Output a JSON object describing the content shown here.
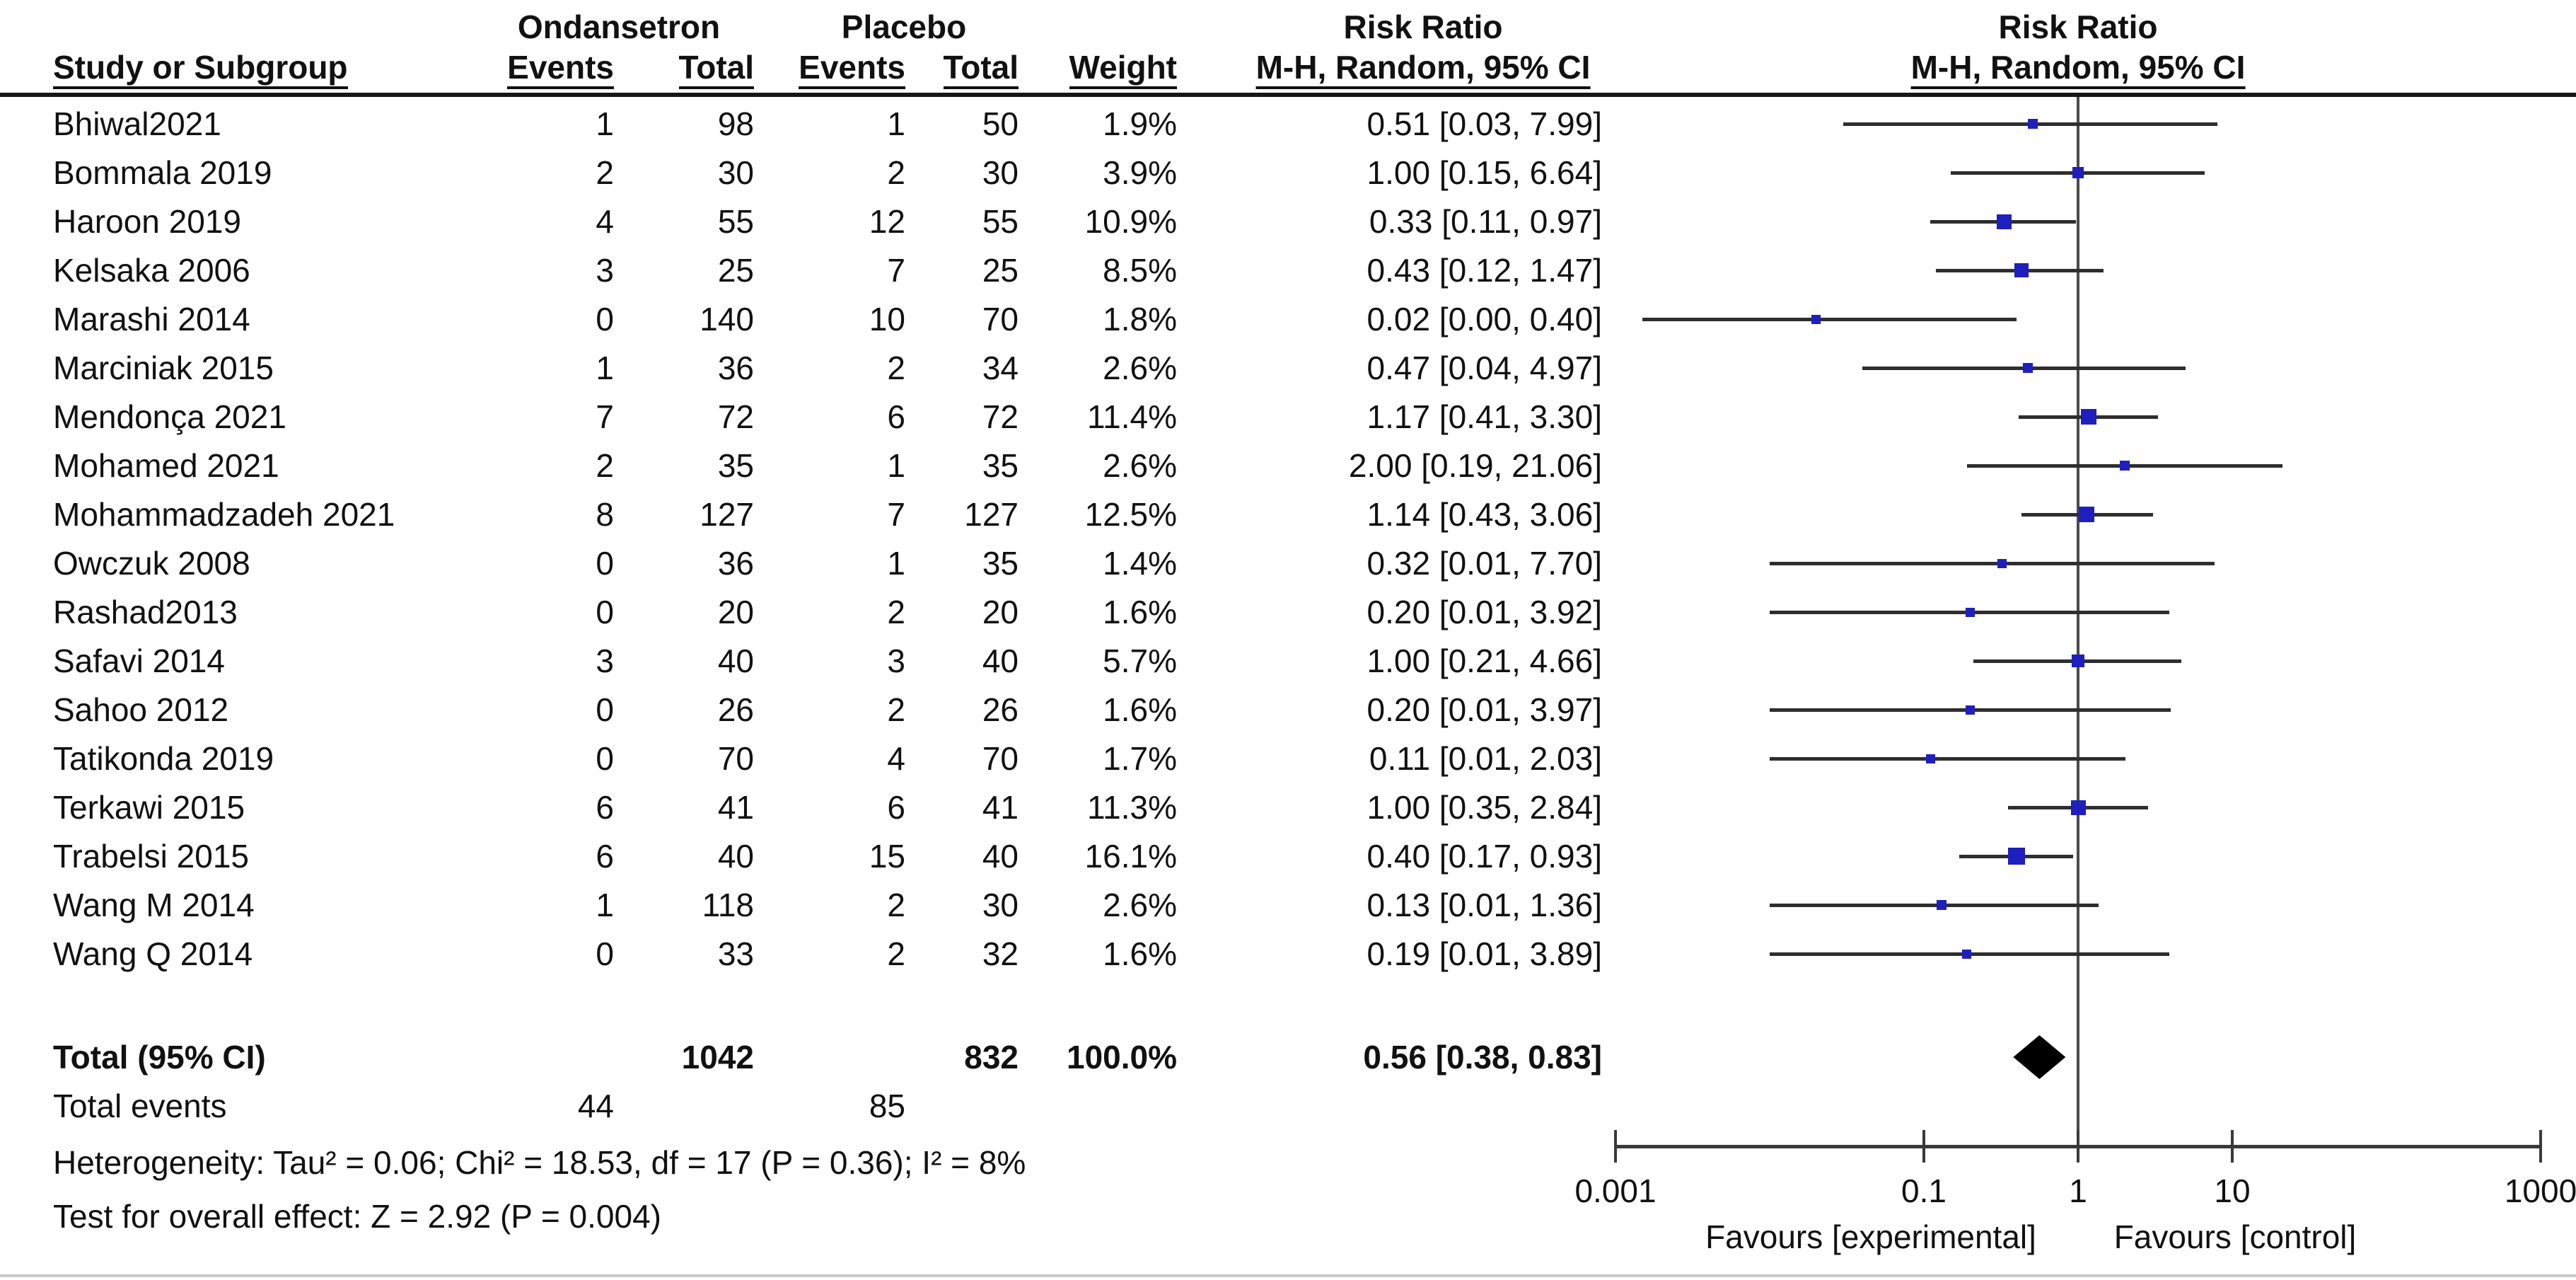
{
  "header": {
    "group_experimental": "Ondansetron",
    "group_control": "Placebo",
    "col_study": "Study or Subgroup",
    "col_events": "Events",
    "col_total": "Total",
    "col_events2": "Events",
    "col_total2": "Total",
    "col_weight": "Weight",
    "risk_ratio_title_text": "Risk Ratio",
    "risk_ratio_title_plot": "Risk Ratio",
    "method_text": "M-H, Random, 95% CI",
    "method_plot": "M-H, Random, 95% CI"
  },
  "footer": {
    "total_label": "Total (95% CI)",
    "total_events_label": "Total events",
    "heterogeneity": "Heterogeneity: Tau² = 0.06; Chi² = 18.53, df = 17 (P = 0.36); I² = 8%",
    "overall_effect": "Test for overall effect: Z = 2.92 (P = 0.004)"
  },
  "colors": {
    "marker_blue": "#1f1fbe",
    "ci_line": "#2e2e2e",
    "diamond": "#000000"
  },
  "chart_data": {
    "type": "scatter",
    "subtype": "forest-plot",
    "x_scale": "log",
    "x_ticks_labels": [
      "0.001",
      "0.1",
      "1",
      "10",
      "1000"
    ],
    "x_ticks_values": [
      0.001,
      0.1,
      1,
      10,
      1000
    ],
    "xlim": [
      0.001,
      1000
    ],
    "favours_left": "Favours [experimental]",
    "favours_right": "Favours [control]",
    "studies": [
      {
        "name": "Bhiwal2021",
        "ev1": "1",
        "tot1": "98",
        "ev2": "1",
        "tot2": "50",
        "weight": "1.9%",
        "w": 1.9,
        "rr_text": "0.51 [0.03, 7.99]",
        "rr": 0.51,
        "lo": 0.03,
        "hi": 7.99
      },
      {
        "name": "Bommala 2019",
        "ev1": "2",
        "tot1": "30",
        "ev2": "2",
        "tot2": "30",
        "weight": "3.9%",
        "w": 3.9,
        "rr_text": "1.00 [0.15, 6.64]",
        "rr": 1.0,
        "lo": 0.15,
        "hi": 6.64
      },
      {
        "name": "Haroon 2019",
        "ev1": "4",
        "tot1": "55",
        "ev2": "12",
        "tot2": "55",
        "weight": "10.9%",
        "w": 10.9,
        "rr_text": "0.33 [0.11, 0.97]",
        "rr": 0.33,
        "lo": 0.11,
        "hi": 0.97
      },
      {
        "name": "Kelsaka 2006",
        "ev1": "3",
        "tot1": "25",
        "ev2": "7",
        "tot2": "25",
        "weight": "8.5%",
        "w": 8.5,
        "rr_text": "0.43 [0.12, 1.47]",
        "rr": 0.43,
        "lo": 0.12,
        "hi": 1.47
      },
      {
        "name": "Marashi 2014",
        "ev1": "0",
        "tot1": "140",
        "ev2": "10",
        "tot2": "70",
        "weight": "1.8%",
        "w": 1.8,
        "rr_text": "0.02 [0.00, 0.40]",
        "rr": 0.02,
        "lo": 0.0,
        "plot_lo": 0.0015,
        "hi": 0.4
      },
      {
        "name": "Marciniak 2015",
        "ev1": "1",
        "tot1": "36",
        "ev2": "2",
        "tot2": "34",
        "weight": "2.6%",
        "w": 2.6,
        "rr_text": "0.47 [0.04, 4.97]",
        "rr": 0.47,
        "lo": 0.04,
        "hi": 4.97
      },
      {
        "name": "Mendonça 2021",
        "ev1": "7",
        "tot1": "72",
        "ev2": "6",
        "tot2": "72",
        "weight": "11.4%",
        "w": 11.4,
        "rr_text": "1.17 [0.41, 3.30]",
        "rr": 1.17,
        "lo": 0.41,
        "hi": 3.3
      },
      {
        "name": "Mohamed 2021",
        "ev1": "2",
        "tot1": "35",
        "ev2": "1",
        "tot2": "35",
        "weight": "2.6%",
        "w": 2.6,
        "rr_text": "2.00 [0.19, 21.06]",
        "rr": 2.0,
        "lo": 0.19,
        "hi": 21.06
      },
      {
        "name": "Mohammadzadeh 2021",
        "ev1": "8",
        "tot1": "127",
        "ev2": "7",
        "tot2": "127",
        "weight": "12.5%",
        "w": 12.5,
        "rr_text": "1.14 [0.43, 3.06]",
        "rr": 1.14,
        "lo": 0.43,
        "hi": 3.06
      },
      {
        "name": "Owczuk 2008",
        "ev1": "0",
        "tot1": "36",
        "ev2": "1",
        "tot2": "35",
        "weight": "1.4%",
        "w": 1.4,
        "rr_text": "0.32 [0.01, 7.70]",
        "rr": 0.32,
        "lo": 0.01,
        "hi": 7.7
      },
      {
        "name": "Rashad2013",
        "ev1": "0",
        "tot1": "20",
        "ev2": "2",
        "tot2": "20",
        "weight": "1.6%",
        "w": 1.6,
        "rr_text": "0.20 [0.01, 3.92]",
        "rr": 0.2,
        "lo": 0.01,
        "hi": 3.92
      },
      {
        "name": "Safavi 2014",
        "ev1": "3",
        "tot1": "40",
        "ev2": "3",
        "tot2": "40",
        "weight": "5.7%",
        "w": 5.7,
        "rr_text": "1.00 [0.21, 4.66]",
        "rr": 1.0,
        "lo": 0.21,
        "hi": 4.66
      },
      {
        "name": "Sahoo 2012",
        "ev1": "0",
        "tot1": "26",
        "ev2": "2",
        "tot2": "26",
        "weight": "1.6%",
        "w": 1.6,
        "rr_text": "0.20 [0.01, 3.97]",
        "rr": 0.2,
        "lo": 0.01,
        "hi": 3.97
      },
      {
        "name": "Tatikonda 2019",
        "ev1": "0",
        "tot1": "70",
        "ev2": "4",
        "tot2": "70",
        "weight": "1.7%",
        "w": 1.7,
        "rr_text": "0.11 [0.01, 2.03]",
        "rr": 0.11,
        "lo": 0.01,
        "hi": 2.03
      },
      {
        "name": "Terkawi 2015",
        "ev1": "6",
        "tot1": "41",
        "ev2": "6",
        "tot2": "41",
        "weight": "11.3%",
        "w": 11.3,
        "rr_text": "1.00 [0.35, 2.84]",
        "rr": 1.0,
        "lo": 0.35,
        "hi": 2.84
      },
      {
        "name": "Trabelsi 2015",
        "ev1": "6",
        "tot1": "40",
        "ev2": "15",
        "tot2": "40",
        "weight": "16.1%",
        "w": 16.1,
        "rr_text": "0.40 [0.17, 0.93]",
        "rr": 0.4,
        "lo": 0.17,
        "hi": 0.93
      },
      {
        "name": "Wang M 2014",
        "ev1": "1",
        "tot1": "118",
        "ev2": "2",
        "tot2": "30",
        "weight": "2.6%",
        "w": 2.6,
        "rr_text": "0.13 [0.01, 1.36]",
        "rr": 0.13,
        "lo": 0.01,
        "hi": 1.36
      },
      {
        "name": "Wang Q 2014",
        "ev1": "0",
        "tot1": "33",
        "ev2": "2",
        "tot2": "32",
        "weight": "1.6%",
        "w": 1.6,
        "rr_text": "0.19 [0.01, 3.89]",
        "rr": 0.19,
        "lo": 0.01,
        "hi": 3.89
      }
    ],
    "overall": {
      "tot1": "1042",
      "tot2": "832",
      "weight": "100.0%",
      "rr_text": "0.56 [0.38, 0.83]",
      "rr": 0.56,
      "lo": 0.38,
      "hi": 0.83
    },
    "total_events": {
      "ev1": "44",
      "ev2": "85"
    }
  }
}
